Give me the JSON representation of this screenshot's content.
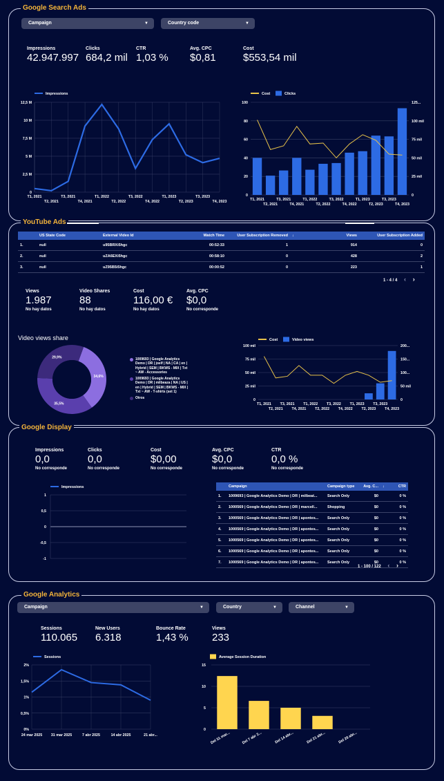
{
  "gsa": {
    "title": "Google Search Ads",
    "dd_campaign": "Campaign",
    "dd_country": "Country code",
    "kpis": [
      {
        "label": "Impressions",
        "value": "42.947.997"
      },
      {
        "label": "Clicks",
        "value": "684,2 mil"
      },
      {
        "label": "CTR",
        "value": "1,03 %"
      },
      {
        "label": "Avg. CPC",
        "value": "$0,81"
      },
      {
        "label": "Cost",
        "value": "$553,54 mil"
      }
    ]
  },
  "yt": {
    "title": "YouTube Ads",
    "table": {
      "headers": [
        "US State Code",
        "External Video Id",
        "Watch Time",
        "User Subscription Removed",
        "Views",
        "User Subscription Added"
      ],
      "sort_mark": "↓",
      "rows": [
        [
          "1.",
          "null",
          "u95BRXi5hgc",
          "00:52:33",
          "1",
          "914",
          "0"
        ],
        [
          "2.",
          "null",
          "uZA6EXi5hgc",
          "00:58:10",
          "0",
          "428",
          "2"
        ],
        [
          "3.",
          "null",
          "uZ95B5i5hgc",
          "00:00:52",
          "0",
          "223",
          "1"
        ]
      ],
      "pager": "1 - 4 / 4"
    },
    "kpis": [
      {
        "label": "Views",
        "value": "1.987",
        "sub": "No hay datos"
      },
      {
        "label": "Video Shares",
        "value": "88",
        "sub": "No hay datos"
      },
      {
        "label": "Cost",
        "value": "116,00 €",
        "sub": "No hay datos"
      },
      {
        "label": "Avg. CPC",
        "value": "$0,0",
        "sub": "No corresponde"
      }
    ],
    "donut_title": "Video views share",
    "donut_legend": [
      "1009693 | Google Analytics Demo | DR | joelf | NA | CA | en | Hybrid | SEM | BKWS - MIX | Txt ~ AW - Accessories",
      "1009693 | Google Analytics Demo | DR | milbeaza | NA | US | en | Hybrid | SEM | BKWS - MIX | Txt ~ AW - T-shirts (set 1)",
      "Otros"
    ]
  },
  "gd": {
    "title": "Google Display",
    "kpis": [
      {
        "label": "Impressions",
        "value": "0,0",
        "sub": "No corresponde"
      },
      {
        "label": "Clicks",
        "value": "0,0",
        "sub": "No corresponde"
      },
      {
        "label": "Cost",
        "value": "$0,00",
        "sub": "No corresponde"
      },
      {
        "label": "Avg. CPC",
        "value": "$0,0",
        "sub": "No corresponde"
      },
      {
        "label": "CTR",
        "value": "0,0 %",
        "sub": "No corresponde"
      }
    ],
    "table": {
      "headers": [
        "Campaign",
        "Campaign type",
        "Avg. C...",
        "↓",
        "CTR"
      ],
      "rows": [
        [
          "1.",
          "1009693 | Google Analytics Demo | DR | milbeat...",
          "Search Only",
          "$0",
          "0 %"
        ],
        [
          "2.",
          "1000569 | Google Analytics Demo | DR | marcell...",
          "Shopping",
          "$0",
          "0 %"
        ],
        [
          "3.",
          "1000569 | Google Analytics Demo | DR | apontes...",
          "Search Only",
          "$0",
          "0 %"
        ],
        [
          "4.",
          "1000569 | Google Analytics Demo | DR | apontes...",
          "Search Only",
          "$0",
          "0 %"
        ],
        [
          "5.",
          "1000569 | Google Analytics Demo | DR | apontes...",
          "Search Only",
          "$0",
          "0 %"
        ],
        [
          "6.",
          "1000569 | Google Analytics Demo | DR | apontes...",
          "Search Only",
          "$0",
          "0 %"
        ],
        [
          "7.",
          "1000569 | Google Analytics Demo | DR | apontes...",
          "Search Only",
          "$0",
          "0 %"
        ]
      ],
      "pager": "1 - 100 / 122"
    }
  },
  "ga": {
    "title": "Google Analytics",
    "dd_campaign": "Campaign",
    "dd_country": "Country",
    "dd_channel": "Channel",
    "kpis": [
      {
        "label": "Sessions",
        "value": "110.065"
      },
      {
        "label": "New Users",
        "value": "6.318"
      },
      {
        "label": "Bounce Rate",
        "value": "1,43 %"
      },
      {
        "label": "Views",
        "value": "233"
      }
    ]
  },
  "chart_data": [
    {
      "type": "line",
      "series": [
        {
          "name": "Impressions",
          "values": [
            0.5,
            0.2,
            1.5,
            9.2,
            12.2,
            8.8,
            3.3,
            7.3,
            9.5,
            5.2,
            4.1,
            4.7
          ]
        }
      ],
      "x": [
        "T1, 2021",
        "T2, 2021",
        "T3, 2021",
        "T4, 2021",
        "T1, 2022",
        "T2, 2022",
        "T3, 2022",
        "T4, 2022",
        "T1, 2023",
        "T2, 2023",
        "T3, 2023",
        "T4, 2023"
      ],
      "y_ticks": [
        "0",
        "2,5 M",
        "5 M",
        "7,5 M",
        "10 M",
        "12,5 M"
      ],
      "ylim": [
        0,
        12.5
      ],
      "legend": "top-left",
      "grid": true
    },
    {
      "type": "bar",
      "x": [
        "T1, 2021",
        "T2, 2021",
        "T3, 2021",
        "T4, 2021",
        "T1, 2022",
        "T2, 2022",
        "T3, 2022",
        "T4, 2022",
        "T1, 2023",
        "T2, 2023",
        "T3, 2023",
        "T4, 2023"
      ],
      "series": [
        {
          "name": "Clicks",
          "type": "bar",
          "axis": "right",
          "values": [
            50,
            26,
            33,
            50,
            34,
            42,
            43,
            57,
            59,
            80,
            79,
            117
          ]
        },
        {
          "name": "Cost",
          "type": "line",
          "axis": "left",
          "values": [
            81,
            49,
            53,
            74,
            55,
            56,
            40,
            55,
            65,
            59,
            44,
            43
          ]
        }
      ],
      "y_left_ticks": [
        "0",
        "20",
        "40",
        "60",
        "80",
        "100"
      ],
      "y_right_ticks": [
        "0",
        "25 mil",
        "50 mil",
        "75 mil",
        "100 mil",
        "125..."
      ],
      "ylim_left": [
        0,
        100
      ],
      "ylim_right": [
        0,
        125
      ],
      "legend": "top-left",
      "grid": true
    },
    {
      "type": "pie",
      "donut": true,
      "slices": [
        {
          "label": "34,6%",
          "value": 34.6,
          "color": "#8c6ee0"
        },
        {
          "label": "35,5%",
          "value": 35.5,
          "color": "#5a3fad"
        },
        {
          "label": "29,9%",
          "value": 29.9,
          "color": "#3c2a7c"
        }
      ]
    },
    {
      "type": "bar",
      "x": [
        "T1, 2021",
        "T2, 2021",
        "T3, 2021",
        "T4, 2021",
        "T1, 2022",
        "T2, 2022",
        "T3, 2022",
        "T4, 2022",
        "T1, 2023",
        "T2, 2023",
        "T3, 2023",
        "T4, 2023"
      ],
      "series": [
        {
          "name": "Video views",
          "type": "bar",
          "axis": "right",
          "values": [
            0,
            0,
            0,
            0,
            0,
            0,
            0,
            0,
            0,
            23,
            60,
            180
          ]
        },
        {
          "name": "Cost",
          "type": "line",
          "axis": "left",
          "values": [
            80,
            40,
            43,
            63,
            45,
            45,
            30,
            45,
            52,
            45,
            32,
            35
          ]
        }
      ],
      "y_left_ticks": [
        "0",
        "25 mil",
        "50 mil",
        "75 mil",
        "100 mil"
      ],
      "y_right_ticks": [
        "0",
        "50 mil",
        "100...",
        "150...",
        "200..."
      ],
      "ylim_left": [
        0,
        100
      ],
      "ylim_right": [
        0,
        200
      ],
      "legend": "top-left",
      "grid": true
    },
    {
      "type": "line",
      "series": [
        {
          "name": "Impressions",
          "values": [
            0,
            0,
            0,
            0,
            0,
            0,
            0,
            0,
            0,
            0
          ]
        }
      ],
      "y_ticks": [
        "-1",
        "-0,5",
        "0",
        "0,5",
        "1"
      ],
      "ylim": [
        -1,
        1
      ],
      "legend": "top-left",
      "grid": true
    },
    {
      "type": "line",
      "series": [
        {
          "name": "Sessions",
          "values": [
            1.15,
            1.85,
            1.45,
            1.38,
            0.9
          ]
        }
      ],
      "x": [
        "24 mar 2025",
        "31 mar 2025",
        "7 abr 2025",
        "14 abr 2025",
        "21 abr..."
      ],
      "y_ticks": [
        "0%",
        "0,5%",
        "1%",
        "1,5%",
        "2%"
      ],
      "ylim": [
        0,
        2
      ],
      "legend": "top-left",
      "grid": true
    },
    {
      "type": "bar",
      "series": [
        {
          "name": "Average Session Duration",
          "values": [
            12.4,
            6.6,
            5.0,
            3.1,
            0
          ]
        }
      ],
      "categories": [
        "Del 31 mar...",
        "Del 7 abr 2...",
        "Del 14 abr...",
        "Del 21 abr...",
        "Del 28 abr..."
      ],
      "y_ticks": [
        "0",
        "5",
        "10",
        "15"
      ],
      "ylim": [
        0,
        15
      ],
      "legend": "top-left",
      "grid": true
    }
  ]
}
